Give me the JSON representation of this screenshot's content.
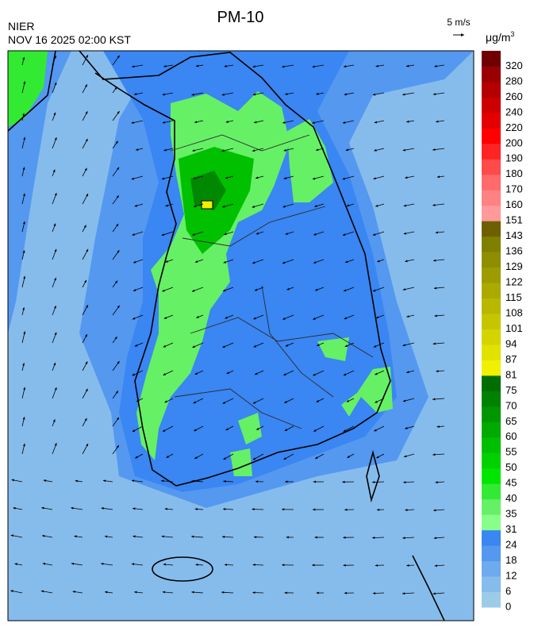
{
  "title": "PM-10",
  "source": "NIER",
  "timestamp": "NOV 16 2025 02:00 KST",
  "wind_scale": "5 m/s",
  "unit": {
    "base": "μg/m",
    "exponent": "3"
  },
  "colorbar": [
    {
      "value": 0,
      "color": "#9ccbe8"
    },
    {
      "value": 6,
      "color": "#86bcec"
    },
    {
      "value": 12,
      "color": "#6eaaee"
    },
    {
      "value": 18,
      "color": "#5498f0"
    },
    {
      "value": 24,
      "color": "#3a86f2"
    },
    {
      "value": 31,
      "color": "#88ff88"
    },
    {
      "value": 35,
      "color": "#66f066"
    },
    {
      "value": 40,
      "color": "#33ea33"
    },
    {
      "value": 45,
      "color": "#00e600"
    },
    {
      "value": 50,
      "color": "#00d200"
    },
    {
      "value": 55,
      "color": "#00be00"
    },
    {
      "value": 60,
      "color": "#00aa00"
    },
    {
      "value": 65,
      "color": "#009600"
    },
    {
      "value": 70,
      "color": "#008200"
    },
    {
      "value": 75,
      "color": "#006e00"
    },
    {
      "value": 81,
      "color": "#f0f000"
    },
    {
      "value": 87,
      "color": "#e2e200"
    },
    {
      "value": 94,
      "color": "#d4d400"
    },
    {
      "value": 101,
      "color": "#c6c600"
    },
    {
      "value": 108,
      "color": "#b8b800"
    },
    {
      "value": 115,
      "color": "#aaaa00"
    },
    {
      "value": 122,
      "color": "#9c9c00"
    },
    {
      "value": 129,
      "color": "#8e8e00"
    },
    {
      "value": 136,
      "color": "#808000"
    },
    {
      "value": 143,
      "color": "#6e6000"
    },
    {
      "value": 151,
      "color": "#ff9a9a"
    },
    {
      "value": 160,
      "color": "#ff8282"
    },
    {
      "value": 170,
      "color": "#ff6a6a"
    },
    {
      "value": 180,
      "color": "#ff4a4a"
    },
    {
      "value": 190,
      "color": "#ff2424"
    },
    {
      "value": 200,
      "color": "#ff0000"
    },
    {
      "value": 220,
      "color": "#e40000"
    },
    {
      "value": 240,
      "color": "#cc0000"
    },
    {
      "value": 260,
      "color": "#b40000"
    },
    {
      "value": 280,
      "color": "#9a0000"
    },
    {
      "value": 320,
      "color": "#700000"
    }
  ]
}
